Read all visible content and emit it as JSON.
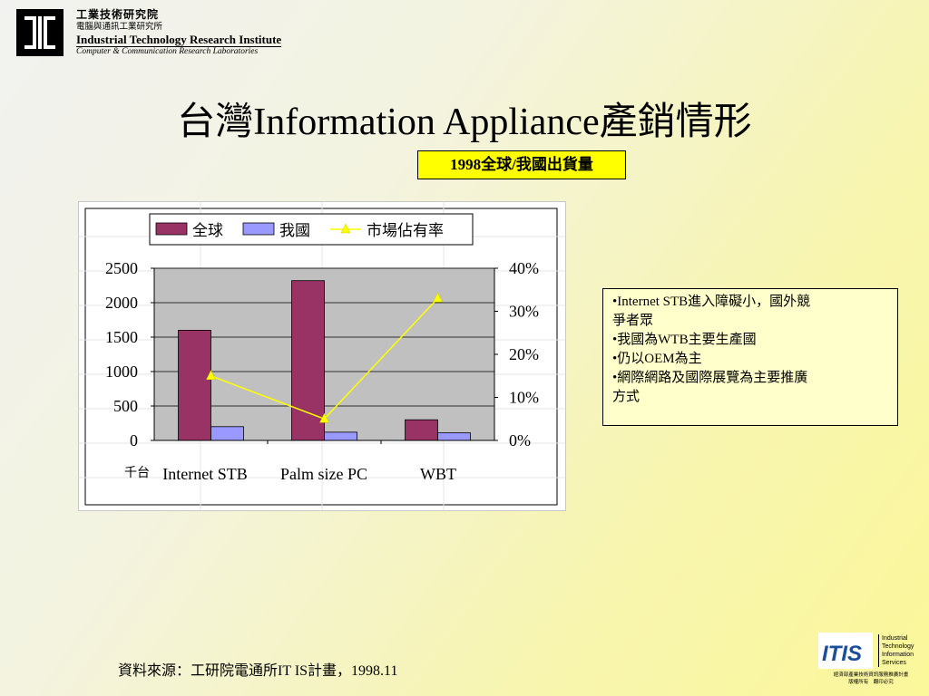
{
  "header": {
    "org_zh": "工業技術研究院",
    "lab_zh": "電腦與通訊工業研究所",
    "org_en": "Industrial Technology Research Institute",
    "lab_en": "Computer & Communication Research Laboratories"
  },
  "title": "台灣Information Appliance產銷情形",
  "chart_label": "1998全球/我國出貨量",
  "chart_data": {
    "type": "bar",
    "categories": [
      "Internet STB",
      "Palm size PC",
      "WBT"
    ],
    "series": [
      {
        "name": "全球",
        "type": "bar",
        "axis": "left",
        "color": "#993366",
        "values": [
          1600,
          2320,
          300
        ]
      },
      {
        "name": "我國",
        "type": "bar",
        "axis": "left",
        "color": "#9999ff",
        "values": [
          200,
          120,
          110
        ]
      },
      {
        "name": "市場佔有率",
        "type": "line",
        "axis": "right",
        "color": "#ffff00",
        "values": [
          0.15,
          0.05,
          0.33
        ]
      }
    ],
    "ylim": [
      0,
      2500
    ],
    "y2lim": [
      0,
      0.4
    ],
    "yticks": [
      "0",
      "500",
      "1000",
      "1500",
      "2000",
      "2500"
    ],
    "y2ticks": [
      "0%",
      "10%",
      "20%",
      "30%",
      "40%"
    ],
    "unit_label": "千台",
    "legend": "top",
    "grid": true
  },
  "notes": [
    "•Internet STB進入障礙小，國外競",
    "爭者眾",
    "•我國為WTB主要生產國",
    "•仍以OEM為主",
    "•網際網路及國際展覽為主要推廣",
    "方式"
  ],
  "source": "資料來源：工研院電通所IT IS計畫，1998.11",
  "itis": {
    "logo_text": "ITIS",
    "lines": [
      "Industrial",
      "Technology",
      "Information",
      "Services"
    ],
    "small1": "經濟部產業技術資訊服務推廣計畫",
    "small2": "版權所有　翻印必究"
  }
}
